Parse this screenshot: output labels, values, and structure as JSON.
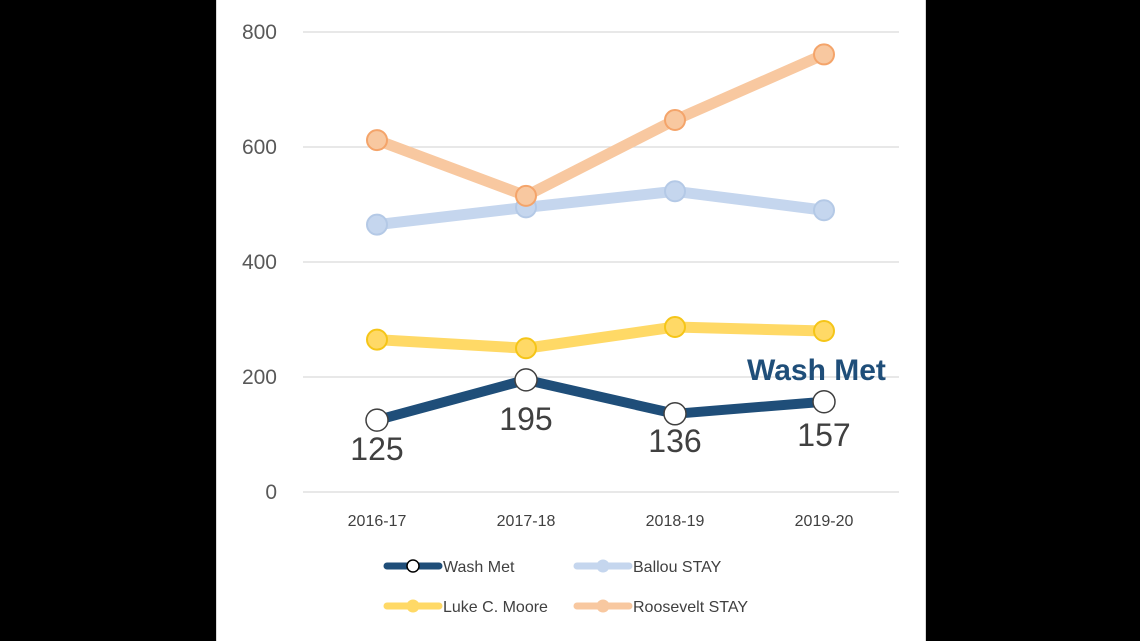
{
  "chart_data": {
    "type": "line",
    "categories": [
      "2016-17",
      "2017-18",
      "2018-19",
      "2019-20"
    ],
    "ylim": [
      0,
      800
    ],
    "yticks": [
      0,
      200,
      400,
      600,
      800
    ],
    "grid": true,
    "legend_position": "bottom",
    "series": [
      {
        "name": "Wash Met",
        "values": [
          125,
          195,
          136,
          157
        ],
        "color": "#1f4e79",
        "marker": "hollow-circle",
        "data_labels": [
          "125",
          "195",
          "136",
          "157"
        ]
      },
      {
        "name": "Ballou STAY",
        "values": [
          465,
          495,
          523,
          490
        ],
        "color": "#c5d6ee",
        "marker": "circle"
      },
      {
        "name": "Luke C. Moore",
        "values": [
          265,
          250,
          287,
          280
        ],
        "color": "#ffd966",
        "marker": "circle"
      },
      {
        "name": "Roosevelt STAY",
        "values": [
          612,
          515,
          647,
          761
        ],
        "color": "#f8c8a0",
        "marker": "circle"
      }
    ],
    "annotation": {
      "text": "Wash Met",
      "color": "#1f4e79"
    }
  }
}
